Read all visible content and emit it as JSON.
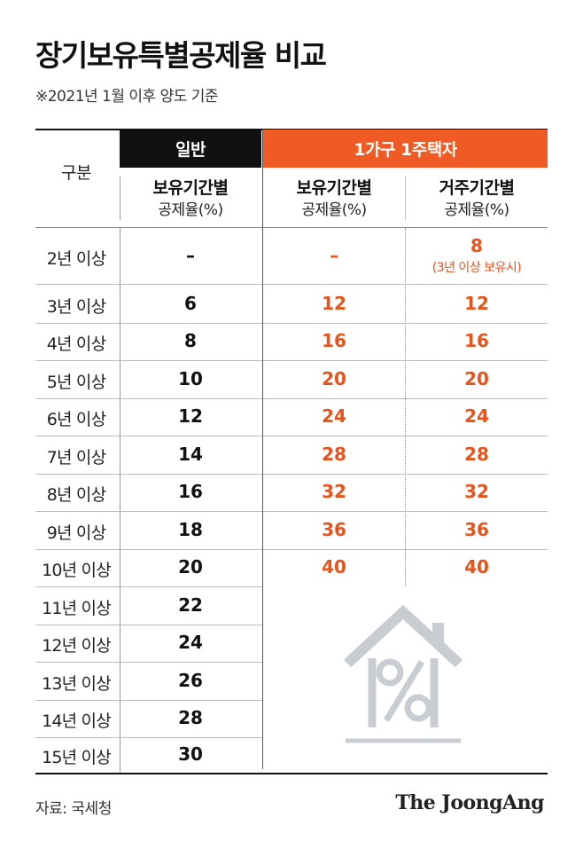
{
  "title": "장기보유특별공제율 비교",
  "subtitle": "※2021년 1월 이후 양도 기준",
  "headers": {
    "row_header": "구분",
    "general": "일반",
    "one_house": "1가구 1주택자",
    "col1_line1": "보유기간별",
    "col1_line2": "공제율(%)",
    "col2_line1": "보유기간별",
    "col2_line2": "공제율(%)",
    "col3_line1": "거주기간별",
    "col3_line2": "공제율(%)"
  },
  "rows": [
    {
      "label": "2년 이상",
      "general": "–",
      "holding": "–",
      "residence": "8",
      "note": "(3년 이상 보유시)"
    },
    {
      "label": "3년 이상",
      "general": "6",
      "holding": "12",
      "residence": "12"
    },
    {
      "label": "4년 이상",
      "general": "8",
      "holding": "16",
      "residence": "16"
    },
    {
      "label": "5년 이상",
      "general": "10",
      "holding": "20",
      "residence": "20"
    },
    {
      "label": "6년 이상",
      "general": "12",
      "holding": "24",
      "residence": "24"
    },
    {
      "label": "7년 이상",
      "general": "14",
      "holding": "28",
      "residence": "28"
    },
    {
      "label": "8년 이상",
      "general": "16",
      "holding": "32",
      "residence": "32"
    },
    {
      "label": "9년 이상",
      "general": "18",
      "holding": "36",
      "residence": "36"
    },
    {
      "label": "10년 이상",
      "general": "20",
      "holding": "40",
      "residence": "40"
    },
    {
      "label": "11년 이상",
      "general": "22"
    },
    {
      "label": "12년 이상",
      "general": "24"
    },
    {
      "label": "13년 이상",
      "general": "26"
    },
    {
      "label": "14년 이상",
      "general": "28"
    },
    {
      "label": "15년 이상",
      "general": "30"
    }
  ],
  "source": "자료: 국세청",
  "logo": "The JoongAng",
  "colors": {
    "accent": "#f05a24",
    "header_dark": "#111111",
    "value_orange": "#e8531c"
  },
  "icons": {
    "illustration": "house-percent-icon"
  }
}
